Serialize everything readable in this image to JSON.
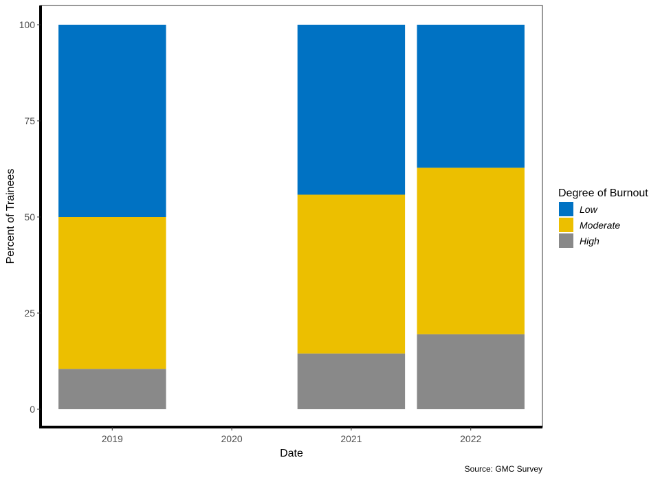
{
  "chart_data": {
    "type": "bar",
    "stacked": true,
    "categories": [
      "2019",
      "2020",
      "2021",
      "2022"
    ],
    "series": [
      {
        "name": "High",
        "color": "#898989",
        "values": [
          10.5,
          null,
          14.5,
          19.5
        ]
      },
      {
        "name": "Moderate",
        "color": "#ecbf00",
        "values": [
          39.5,
          null,
          41.3,
          43.3
        ]
      },
      {
        "name": "Low",
        "color": "#0072c3",
        "values": [
          50.0,
          null,
          44.2,
          37.2
        ]
      }
    ],
    "xlabel": "Date",
    "ylabel": "Percent of Trainees",
    "ylim": [
      0,
      105
    ],
    "yticks": [
      0,
      25,
      50,
      75,
      100
    ],
    "grid": false,
    "legend": {
      "title": "Degree of Burnout",
      "position": "right",
      "order": [
        "Low",
        "Moderate",
        "High"
      ]
    },
    "caption": "Source: GMC Survey"
  }
}
